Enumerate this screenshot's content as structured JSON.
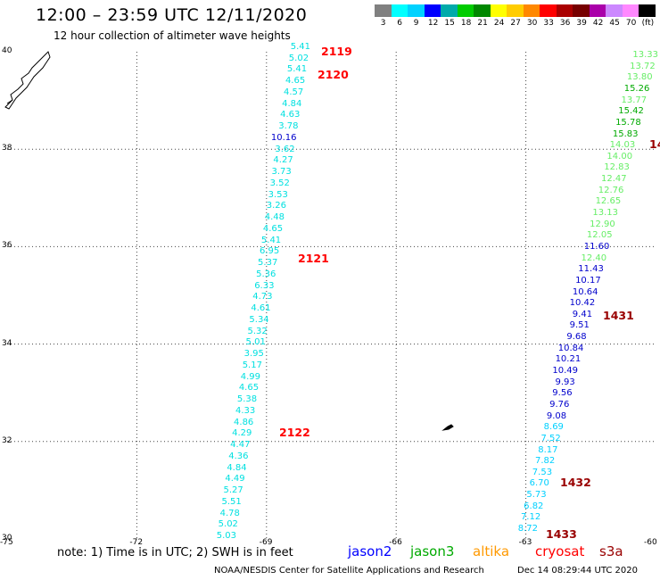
{
  "header": {
    "title": "12:00 – 23:59 UTC 12/11/2020",
    "subtitle": "12 hour collection of altimeter wave heights"
  },
  "legend": {
    "labels": [
      "3",
      "6",
      "9",
      "12",
      "15",
      "18",
      "21",
      "24",
      "27",
      "30",
      "33",
      "36",
      "39",
      "42",
      "45",
      "70",
      "(ft)"
    ],
    "colors": [
      "#808080",
      "#00ffff",
      "#00d2ff",
      "#0000ff",
      "#00aaaa",
      "#00cc00",
      "#008800",
      "#ffff00",
      "#ffcc00",
      "#ff8800",
      "#ff0000",
      "#aa0000",
      "#770000",
      "#aa00aa",
      "#cc88ff",
      "#ff88ff",
      "#000000"
    ]
  },
  "map": {
    "lat_ticks": [
      "40",
      "38",
      "36",
      "34",
      "32",
      "30"
    ],
    "lon_ticks": [
      "-75",
      "-72",
      "-69",
      "-66",
      "-63",
      "-60"
    ]
  },
  "tracks": [
    {
      "color": "#00e0e0",
      "values": [
        "5.41",
        "5.02",
        "5.41",
        "4.65",
        "4.57",
        "4.84",
        "4.63",
        "3.78",
        "10.16",
        "3.62",
        "4.27",
        "3.73",
        "3.52",
        "3.53",
        "3.26",
        "4.48",
        "4.65",
        "5.41",
        "6.95",
        "5.37",
        "5.36",
        "6.33",
        "4.73",
        "4.61",
        "5.34",
        "5.32",
        "5.01",
        "3.95",
        "5.17",
        "4.99",
        "4.65",
        "5.38",
        "4.33",
        "4.86",
        "4.29",
        "4.47",
        "4.36",
        "4.84",
        "4.49",
        "5.27",
        "5.51",
        "4.78",
        "5.02",
        "5.03"
      ],
      "value_colors": {
        "8": "#0000cc"
      }
    },
    {
      "color": "#00e0e0",
      "values": [
        "13.33",
        "13.72",
        "13.80",
        "15.26",
        "13.77",
        "15.42",
        "15.78",
        "15.83",
        "14.03",
        "14.00",
        "12.83",
        "12.47",
        "12.76",
        "12.65",
        "13.13",
        "12.90",
        "12.05",
        "11.60",
        "12.40",
        "11.43",
        "10.17",
        "10.64",
        "10.42",
        "9.41",
        "9.51",
        "9.68",
        "10.84",
        "10.21",
        "10.49",
        "9.93",
        "9.56",
        "9.76",
        "9.08",
        "8.69",
        "7.52",
        "8.17",
        "7.82",
        "7.53",
        "6.70",
        "5.73",
        "6.82",
        "7.12",
        "8.72"
      ]
    }
  ],
  "pass_labels": [
    {
      "text": "2119",
      "color": "#ff0000"
    },
    {
      "text": "2120",
      "color": "#ff0000"
    },
    {
      "text": "2121",
      "color": "#ff0000"
    },
    {
      "text": "2122",
      "color": "#ff0000"
    },
    {
      "text": "14",
      "color": "#990000"
    },
    {
      "text": "1431",
      "color": "#990000"
    },
    {
      "text": "1432",
      "color": "#990000"
    },
    {
      "text": "1433",
      "color": "#990000"
    }
  ],
  "footer": {
    "note": "note:  1) Time is in UTC;  2) SWH is in feet",
    "satellites": [
      {
        "name": "jason2",
        "color": "#0000ff"
      },
      {
        "name": "jason3",
        "color": "#00aa00"
      },
      {
        "name": "altika",
        "color": "#ff9900"
      },
      {
        "name": "cryosat",
        "color": "#ff0000"
      },
      {
        "name": "s3a",
        "color": "#990000"
      }
    ],
    "credit": "NOAA/NESDIS Center for Satellite Applications and Research",
    "timestamp": "Dec 14 08:29:44 UTC 2020"
  }
}
